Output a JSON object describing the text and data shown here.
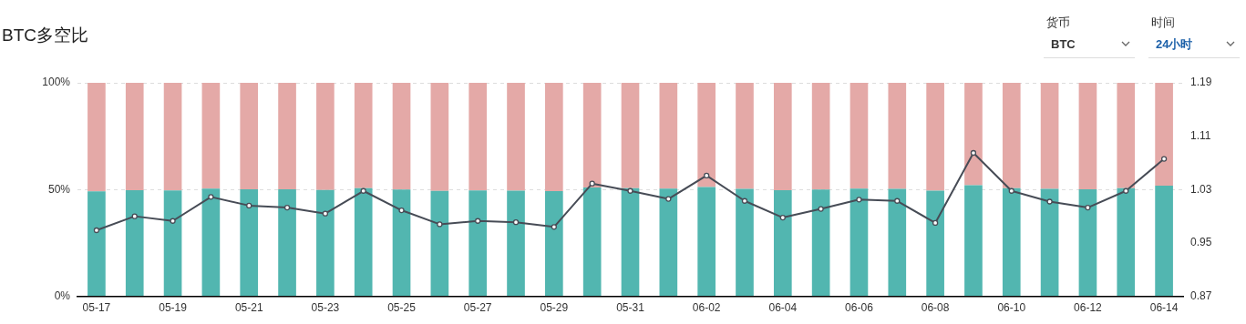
{
  "chart_data": {
    "type": "bar",
    "title": "BTC多空比",
    "annotations": [
      "货币",
      "BTC",
      "时间",
      "24小时"
    ],
    "categories": [
      "05-17",
      null,
      "05-19",
      null,
      "05-21",
      null,
      "05-23",
      null,
      "05-25",
      null,
      "05-27",
      null,
      "05-29",
      null,
      "05-31",
      null,
      "06-02",
      null,
      "06-04",
      null,
      "06-06",
      null,
      "06-08",
      null,
      "06-10",
      null,
      "06-12",
      null,
      "06-14"
    ],
    "stacked": true,
    "series": [
      {
        "color": "#52b6b0",
        "values": [
          49.2,
          49.7,
          49.6,
          50.5,
          50.1,
          50.1,
          49.8,
          50.7,
          50.0,
          49.4,
          49.6,
          49.5,
          49.3,
          51.0,
          50.7,
          50.4,
          51.2,
          50.3,
          49.7,
          50.0,
          50.4,
          50.3,
          49.5,
          52.0,
          50.7,
          50.3,
          50.1,
          50.7,
          51.8
        ]
      },
      {
        "color": "#e4a9a7",
        "values": [
          50.8,
          50.3,
          50.4,
          49.5,
          49.9,
          49.9,
          50.2,
          49.3,
          50.0,
          50.6,
          50.4,
          50.5,
          50.7,
          49.0,
          49.3,
          49.6,
          48.8,
          49.7,
          50.3,
          50.0,
          49.6,
          49.7,
          50.5,
          48.0,
          49.3,
          49.7,
          49.9,
          49.3,
          48.2
        ]
      },
      {
        "type": "line",
        "axis": "y2",
        "color": "#474c56",
        "values": [
          0.969,
          0.99,
          0.983,
          1.019,
          1.006,
          1.003,
          0.994,
          1.028,
          0.999,
          0.978,
          0.983,
          0.981,
          0.974,
          1.039,
          1.028,
          1.016,
          1.051,
          1.013,
          0.988,
          1.001,
          1.015,
          1.013,
          0.98,
          1.085,
          1.028,
          1.012,
          1.003,
          1.028,
          1.076
        ]
      }
    ],
    "ylim": [
      0,
      100
    ],
    "yticks": [
      {
        "value": 0,
        "label": "0%"
      },
      {
        "value": 50,
        "label": "50%"
      },
      {
        "value": 100,
        "label": "100%"
      }
    ],
    "y2lim": [
      0.87,
      1.19
    ],
    "y2ticks": [
      0.87,
      0.95,
      1.03,
      1.11,
      1.19
    ],
    "grid": "y",
    "legend": false,
    "marker": "circle",
    "line_style": "solid"
  }
}
